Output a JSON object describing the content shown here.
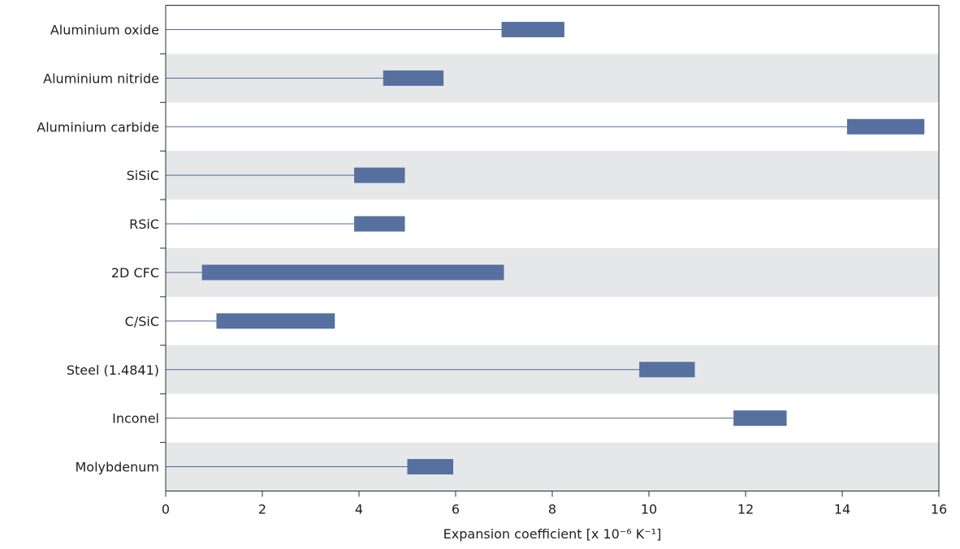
{
  "chart_data": {
    "type": "bar",
    "orientation": "horizontal",
    "title": "",
    "xlabel": "Expansion coefficient [x 10⁻⁶ K⁻¹]",
    "ylabel": "",
    "xlim": [
      0,
      16
    ],
    "xticks": [
      0,
      2,
      4,
      6,
      8,
      10,
      12,
      14,
      16
    ],
    "categories": [
      "Aluminium oxide",
      "Aluminium nitride",
      "Aluminium carbide",
      "SiSiC",
      "RSiC",
      "2D CFC",
      "C/SiC",
      "Steel (1.4841)",
      "Inconel",
      "Molybdenum"
    ],
    "ranges": [
      [
        6.95,
        8.25
      ],
      [
        4.5,
        5.75
      ],
      [
        14.1,
        15.7
      ],
      [
        3.9,
        4.95
      ],
      [
        3.9,
        4.95
      ],
      [
        0.75,
        7.0
      ],
      [
        1.05,
        3.5
      ],
      [
        9.8,
        10.95
      ],
      [
        11.75,
        12.85
      ],
      [
        5.0,
        5.95
      ]
    ],
    "grid": false,
    "alternating_bands": true,
    "colors": {
      "bar": "#56709f",
      "whisker": "#50689a",
      "band": "#e6e7e8",
      "axis": "#2b2b2b"
    }
  }
}
